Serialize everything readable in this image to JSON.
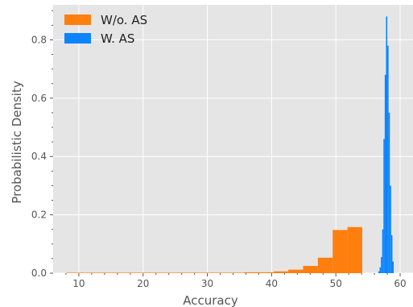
{
  "chart_data": {
    "type": "histogram",
    "title": "",
    "xlabel": "Accuracy",
    "ylabel": "Probabilistic Density",
    "xlim": [
      6,
      62
    ],
    "ylim": [
      0,
      0.92
    ],
    "xticks": [
      10,
      20,
      30,
      40,
      50,
      60
    ],
    "yticks": [
      0.0,
      0.2,
      0.4,
      0.6,
      0.8
    ],
    "ytick_labels": [
      "0.0",
      "0.2",
      "0.4",
      "0.6",
      "0.8"
    ],
    "grid": true,
    "background": "#e5e5e5",
    "legend_position": "top-left",
    "series": [
      {
        "name": "W/o. AS",
        "color": "#ff7f0e",
        "bins": [
          {
            "x0": 8.1,
            "x1": 10.4,
            "density": 0.0006
          },
          {
            "x0": 10.4,
            "x1": 12.7,
            "density": 0.0006
          },
          {
            "x0": 12.7,
            "x1": 15.0,
            "density": 0.0006
          },
          {
            "x0": 15.0,
            "x1": 17.3,
            "density": 0.0006
          },
          {
            "x0": 17.3,
            "x1": 19.6,
            "density": 0.0006
          },
          {
            "x0": 19.6,
            "x1": 21.9,
            "density": 0.0006
          },
          {
            "x0": 21.9,
            "x1": 24.2,
            "density": 0.0006
          },
          {
            "x0": 24.2,
            "x1": 26.5,
            "density": 0.0006
          },
          {
            "x0": 26.5,
            "x1": 28.8,
            "density": 0.0006
          },
          {
            "x0": 28.8,
            "x1": 31.1,
            "density": 0.0006
          },
          {
            "x0": 31.1,
            "x1": 33.4,
            "density": 0.0006
          },
          {
            "x0": 33.4,
            "x1": 35.7,
            "density": 0.0006
          },
          {
            "x0": 35.7,
            "x1": 38.0,
            "density": 0.003
          },
          {
            "x0": 38.0,
            "x1": 40.3,
            "density": 0.003
          },
          {
            "x0": 40.3,
            "x1": 42.6,
            "density": 0.006
          },
          {
            "x0": 42.6,
            "x1": 44.9,
            "density": 0.012
          },
          {
            "x0": 44.9,
            "x1": 47.2,
            "density": 0.025
          },
          {
            "x0": 47.2,
            "x1": 49.5,
            "density": 0.053
          },
          {
            "x0": 49.5,
            "x1": 51.8,
            "density": 0.148
          },
          {
            "x0": 51.8,
            "x1": 54.1,
            "density": 0.158
          }
        ]
      },
      {
        "name": "W. AS",
        "color": "#0a84ff",
        "bins": [
          {
            "x0": 56.6,
            "x1": 56.8,
            "density": 0.006
          },
          {
            "x0": 56.8,
            "x1": 57.0,
            "density": 0.02
          },
          {
            "x0": 57.0,
            "x1": 57.2,
            "density": 0.055
          },
          {
            "x0": 57.2,
            "x1": 57.4,
            "density": 0.15
          },
          {
            "x0": 57.4,
            "x1": 57.6,
            "density": 0.46
          },
          {
            "x0": 57.6,
            "x1": 57.8,
            "density": 0.68
          },
          {
            "x0": 57.8,
            "x1": 58.0,
            "density": 0.88
          },
          {
            "x0": 58.0,
            "x1": 58.2,
            "density": 0.78
          },
          {
            "x0": 58.2,
            "x1": 58.4,
            "density": 0.55
          },
          {
            "x0": 58.4,
            "x1": 58.6,
            "density": 0.3
          },
          {
            "x0": 58.6,
            "x1": 58.8,
            "density": 0.13
          },
          {
            "x0": 58.8,
            "x1": 59.0,
            "density": 0.04
          }
        ]
      }
    ]
  }
}
